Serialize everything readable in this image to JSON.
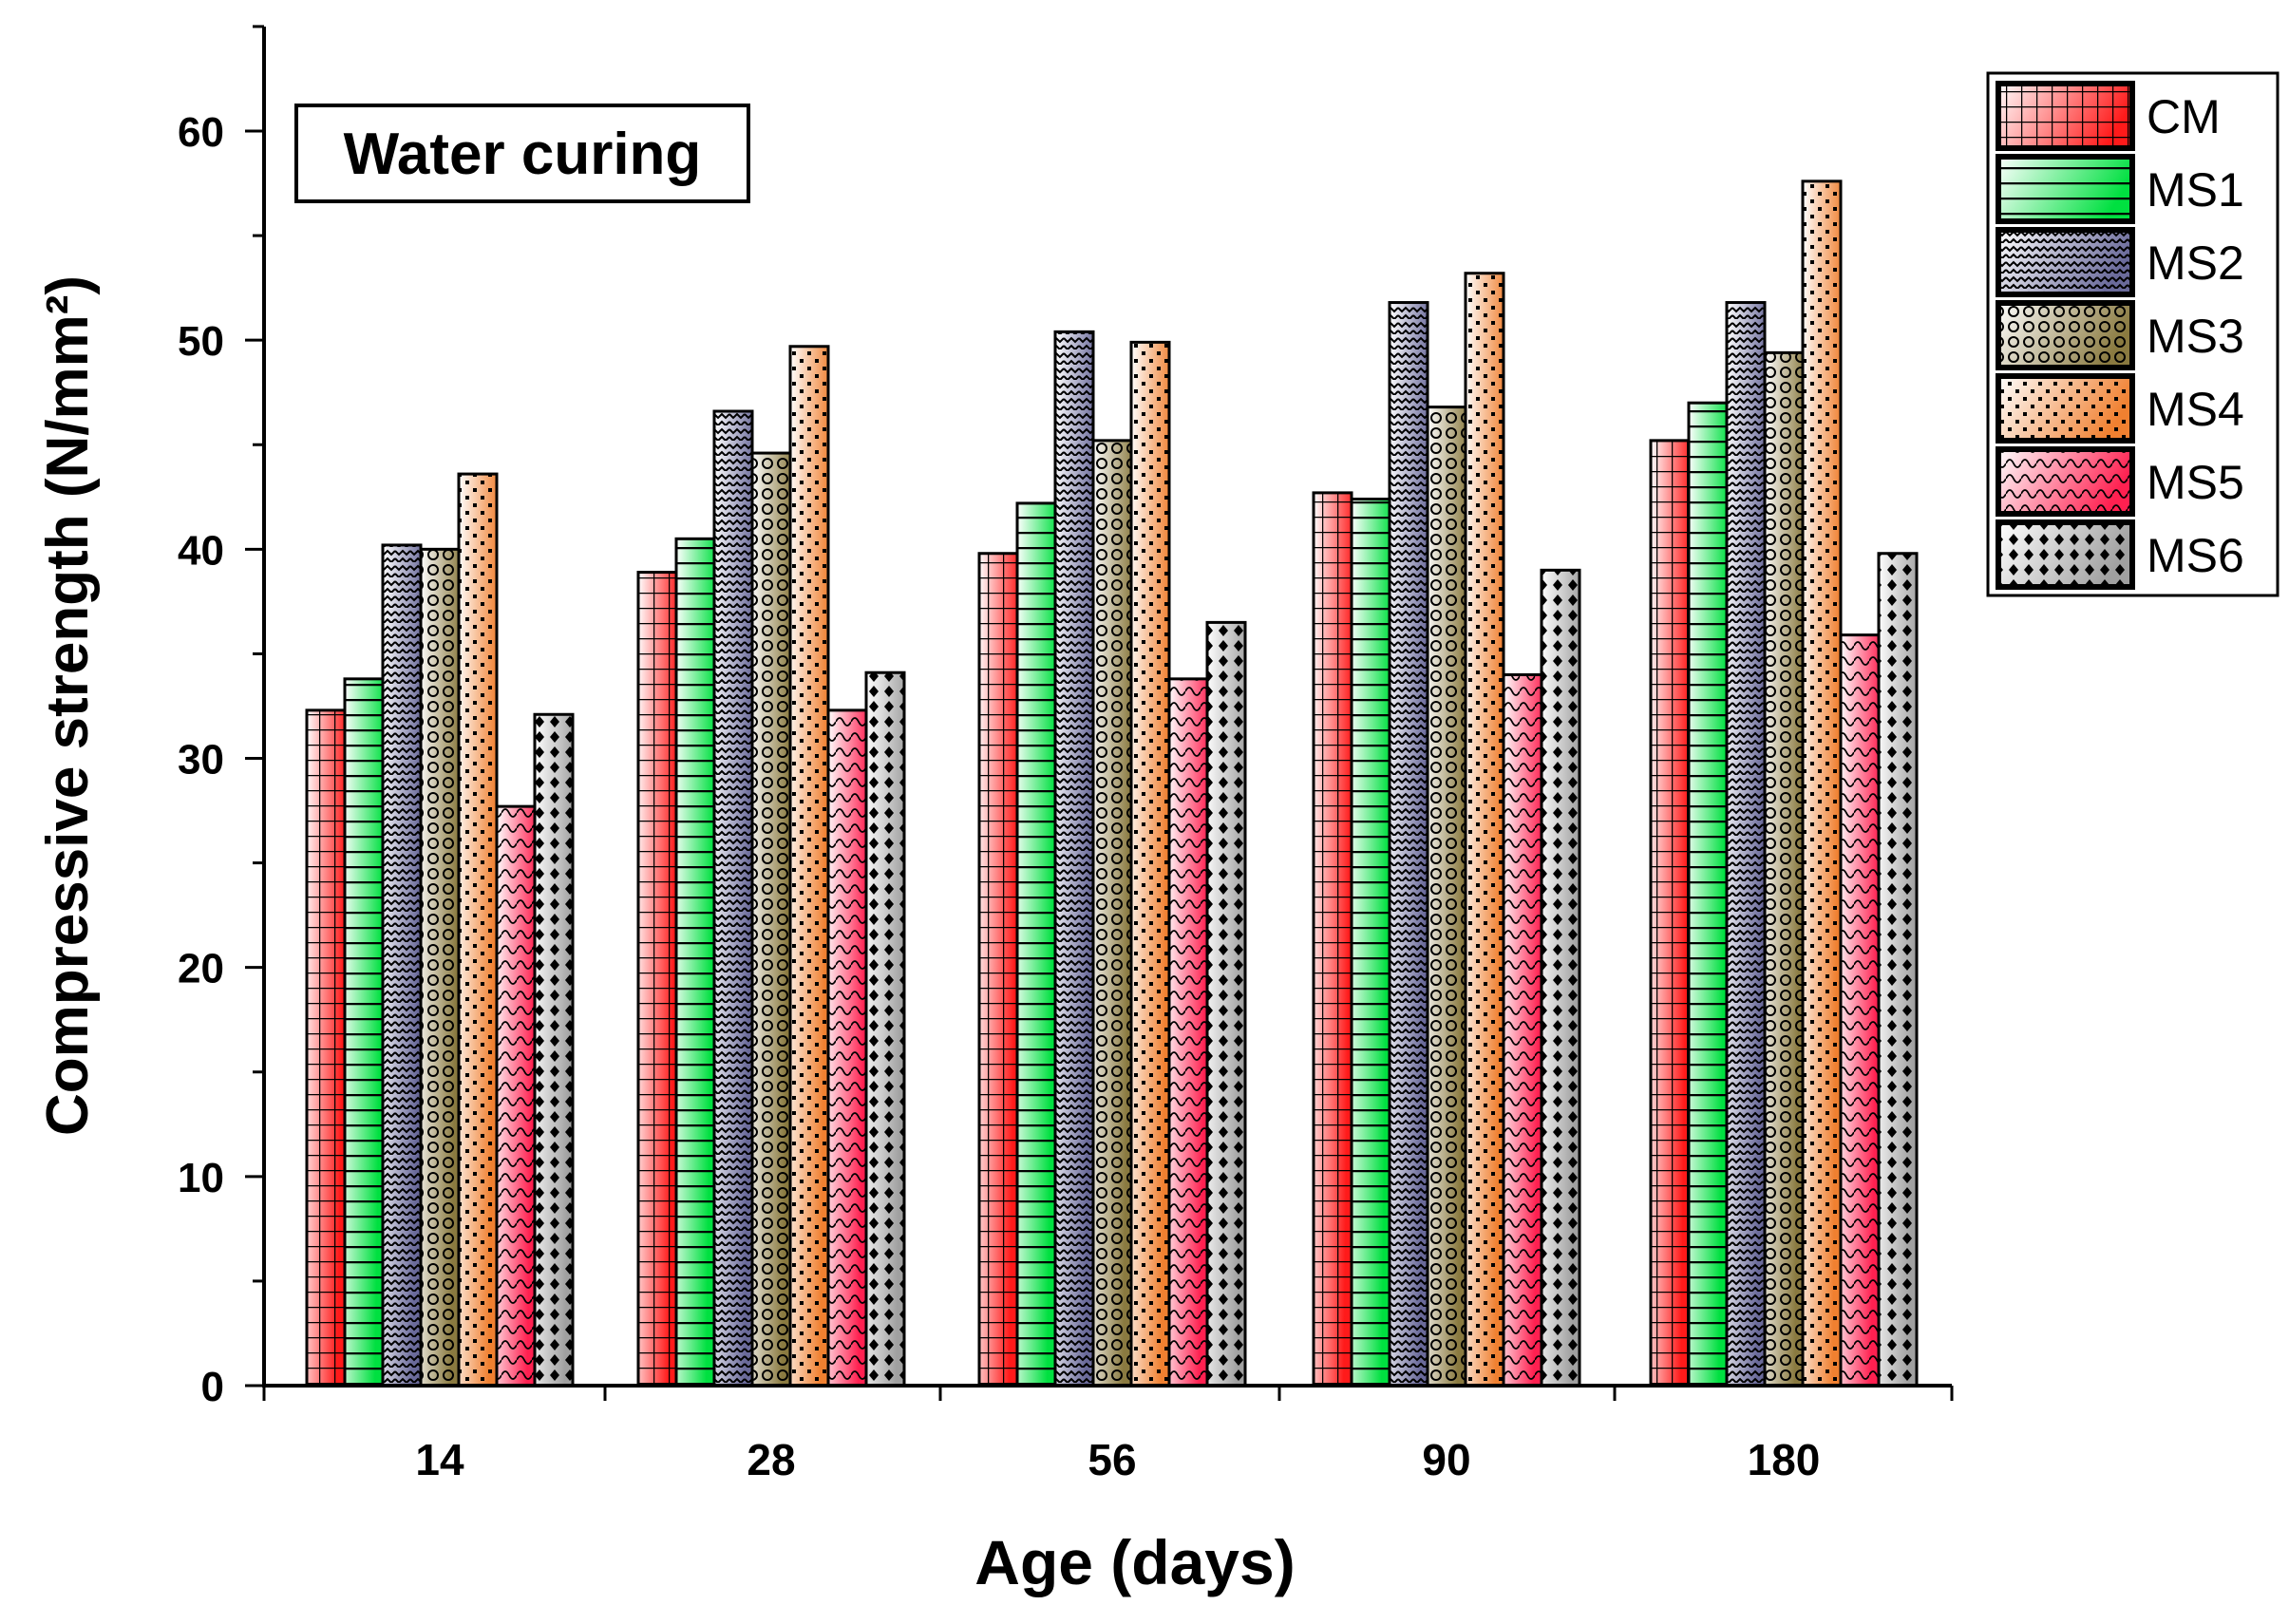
{
  "chart_data": {
    "type": "bar",
    "title": "Water curing",
    "xlabel": "Age (days)",
    "ylabel": "Compressive strength (N/mm²)",
    "ylim": [
      0,
      65
    ],
    "yticks": [
      "0",
      "10",
      "20",
      "30",
      "40",
      "50",
      "60"
    ],
    "categories": [
      "14",
      "28",
      "56",
      "90",
      "180"
    ],
    "legend_position": "top-right",
    "grid": false,
    "series": [
      {
        "name": "CM",
        "color": "#ff1a1a",
        "pattern": "grid",
        "values": [
          32.3,
          38.9,
          39.8,
          42.7,
          45.2
        ]
      },
      {
        "name": "MS1",
        "color": "#00e040",
        "pattern": "hlines",
        "values": [
          33.8,
          40.5,
          42.2,
          42.4,
          47.0
        ]
      },
      {
        "name": "MS2",
        "color": "#6a6a9a",
        "pattern": "zigzag",
        "values": [
          40.2,
          46.6,
          50.4,
          51.8,
          51.8
        ]
      },
      {
        "name": "MS3",
        "color": "#8a7a40",
        "pattern": "circles",
        "values": [
          40.0,
          44.6,
          45.2,
          46.8,
          49.4
        ]
      },
      {
        "name": "MS4",
        "color": "#f08030",
        "pattern": "dots",
        "values": [
          43.6,
          49.7,
          49.9,
          53.2,
          57.6
        ]
      },
      {
        "name": "MS5",
        "color": "#ff2050",
        "pattern": "waves",
        "values": [
          27.7,
          32.3,
          33.8,
          34.0,
          35.9
        ]
      },
      {
        "name": "MS6",
        "color": "#a0a0a0",
        "pattern": "diamonds",
        "values": [
          32.1,
          34.1,
          36.5,
          39.0,
          39.8
        ]
      }
    ]
  }
}
